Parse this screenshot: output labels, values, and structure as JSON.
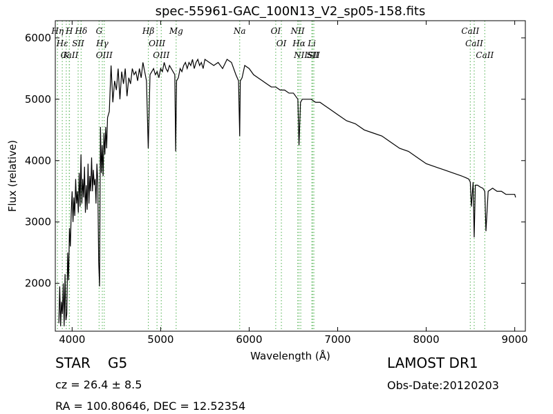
{
  "chart_data": {
    "type": "line",
    "title": "spec-55961-GAC_100N13_V2_sp05-158.fits",
    "xlabel": "Wavelength (Å)",
    "ylabel": "Flux (relative)",
    "xlim": [
      3810,
      9120
    ],
    "ylim": [
      1220,
      6280
    ],
    "xticks": [
      4000,
      5000,
      6000,
      7000,
      8000,
      9000
    ],
    "yticks": [
      2000,
      3000,
      4000,
      5000,
      6000
    ],
    "grid": false,
    "series": [
      {
        "color": "#000000",
        "x": [
          3850,
          3860,
          3870,
          3880,
          3890,
          3900,
          3910,
          3920,
          3930,
          3940,
          3950,
          3960,
          3970,
          3980,
          3990,
          4000,
          4010,
          4020,
          4030,
          4040,
          4050,
          4060,
          4070,
          4080,
          4090,
          4100,
          4110,
          4120,
          4130,
          4140,
          4150,
          4160,
          4170,
          4180,
          4190,
          4200,
          4210,
          4220,
          4230,
          4240,
          4250,
          4260,
          4270,
          4280,
          4290,
          4300,
          4310,
          4320,
          4330,
          4340,
          4350,
          4360,
          4370,
          4380,
          4390,
          4400,
          4420,
          4440,
          4460,
          4480,
          4500,
          4520,
          4540,
          4560,
          4580,
          4600,
          4620,
          4640,
          4660,
          4680,
          4700,
          4720,
          4740,
          4760,
          4780,
          4800,
          4820,
          4840,
          4860,
          4880,
          4900,
          4920,
          4940,
          4960,
          4980,
          5000,
          5020,
          5040,
          5060,
          5080,
          5100,
          5120,
          5140,
          5160,
          5170,
          5180,
          5200,
          5220,
          5240,
          5260,
          5280,
          5300,
          5320,
          5340,
          5360,
          5380,
          5400,
          5420,
          5440,
          5460,
          5480,
          5500,
          5550,
          5600,
          5650,
          5700,
          5750,
          5800,
          5850,
          5880,
          5893,
          5900,
          5920,
          5950,
          6000,
          6050,
          6100,
          6150,
          6200,
          6250,
          6300,
          6350,
          6400,
          6450,
          6500,
          6550,
          6563,
          6580,
          6600,
          6650,
          6700,
          6750,
          6800,
          6850,
          6900,
          6950,
          7000,
          7100,
          7200,
          7300,
          7400,
          7500,
          7600,
          7700,
          7800,
          7900,
          8000,
          8100,
          8200,
          8300,
          8400,
          8450,
          8480,
          8498,
          8510,
          8530,
          8542,
          8555,
          8580,
          8610,
          8640,
          8662,
          8675,
          8700,
          8750,
          8800,
          8850,
          8900,
          8950,
          9000,
          9010
        ],
        "values": [
          1350,
          1950,
          1300,
          1700,
          1500,
          2000,
          1300,
          2150,
          1400,
          1500,
          2500,
          2050,
          2900,
          2600,
          3150,
          3500,
          3000,
          3400,
          3100,
          3700,
          3300,
          3500,
          3150,
          3800,
          3250,
          4100,
          3300,
          3700,
          3400,
          3900,
          3150,
          3600,
          3200,
          3950,
          3300,
          3750,
          3500,
          4050,
          3500,
          3850,
          3600,
          3700,
          3300,
          3950,
          3650,
          2350,
          1950,
          4550,
          3800,
          4250,
          3750,
          4450,
          4100,
          4550,
          4200,
          4700,
          4800,
          5550,
          4950,
          5300,
          5150,
          5500,
          5000,
          5450,
          5250,
          5500,
          5050,
          5350,
          5250,
          5500,
          5400,
          5450,
          5300,
          5500,
          5350,
          5600,
          5450,
          5300,
          4200,
          5400,
          5450,
          5500,
          5400,
          5450,
          5350,
          5500,
          5450,
          5600,
          5500,
          5450,
          5550,
          5500,
          5450,
          5400,
          4150,
          5300,
          5350,
          5500,
          5450,
          5550,
          5600,
          5500,
          5600,
          5550,
          5650,
          5500,
          5600,
          5650,
          5550,
          5600,
          5500,
          5650,
          5600,
          5550,
          5600,
          5500,
          5650,
          5600,
          5400,
          5300,
          4400,
          5300,
          5350,
          5550,
          5500,
          5400,
          5350,
          5300,
          5250,
          5200,
          5200,
          5150,
          5150,
          5100,
          5100,
          5000,
          4250,
          4950,
          5000,
          5000,
          5000,
          4950,
          4950,
          4900,
          4850,
          4800,
          4750,
          4650,
          4600,
          4500,
          4450,
          4400,
          4300,
          4200,
          4150,
          4050,
          3950,
          3900,
          3850,
          3800,
          3750,
          3720,
          3700,
          3650,
          3250,
          3650,
          2750,
          3600,
          3600,
          3570,
          3550,
          3500,
          2850,
          3500,
          3550,
          3500,
          3500,
          3450,
          3450,
          3450,
          3400
        ]
      }
    ],
    "annotations": [
      {
        "label": "Hη",
        "x": 3835
      },
      {
        "label": "Hε",
        "x": 3889
      },
      {
        "label": "K",
        "x": 3934
      },
      {
        "label": "H",
        "x": 3968
      },
      {
        "label": "CaII",
        "x": 3970
      },
      {
        "label": "SII",
        "x": 4068
      },
      {
        "label": "Hδ",
        "x": 4102
      },
      {
        "label": "G",
        "x": 4305
      },
      {
        "label": "Hγ",
        "x": 4341
      },
      {
        "label": "OIII",
        "x": 4363
      },
      {
        "label": "Hβ",
        "x": 4861
      },
      {
        "label": "OIII",
        "x": 4959
      },
      {
        "label": "OIII",
        "x": 5007
      },
      {
        "label": "Mg",
        "x": 5175
      },
      {
        "label": "Na",
        "x": 5893
      },
      {
        "label": "OI",
        "x": 6300
      },
      {
        "label": "OI",
        "x": 6364
      },
      {
        "label": "NII",
        "x": 6548
      },
      {
        "label": "Hα",
        "x": 6563
      },
      {
        "label": "NII",
        "x": 6583
      },
      {
        "label": "Li",
        "x": 6708
      },
      {
        "label": "SII",
        "x": 6717
      },
      {
        "label": "SII",
        "x": 6731
      },
      {
        "label": "CaII",
        "x": 8498
      },
      {
        "label": "CaII",
        "x": 8542
      },
      {
        "label": "CaII",
        "x": 8662
      }
    ],
    "annotation_color": "#66bb66"
  },
  "info": {
    "class_label": "STAR",
    "subclass_label": "G5",
    "survey": "LAMOST DR1",
    "cz_label": "cz = 26.4",
    "cz_err": "± 8.5",
    "obs_date": "Obs-Date:20120203",
    "coords": "RA = 100.80646, DEC = 12.52354"
  }
}
